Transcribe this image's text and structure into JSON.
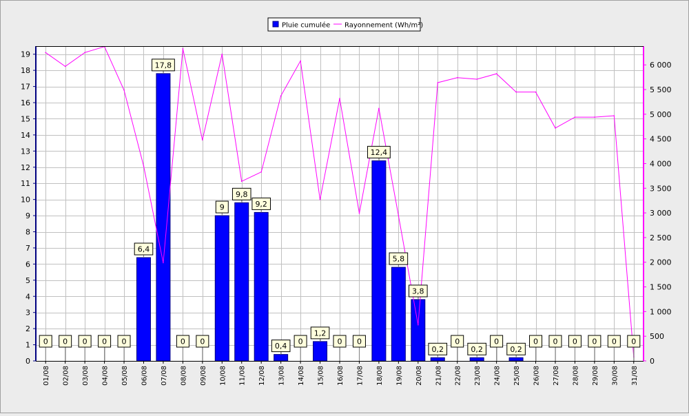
{
  "legend": {
    "rain_label": "Pluie cumulée",
    "radiation_label": "Rayonnement (Wh/m²)"
  },
  "colors": {
    "background": "#ececec",
    "plot_background": "#ffffff",
    "grid": "#c0c0c0",
    "bar": "#0000ff",
    "line": "#ff00ff",
    "label_fill": "#ffffdd"
  },
  "chart_data": {
    "type": "bar+line",
    "categories": [
      "01/08",
      "02/08",
      "03/08",
      "04/08",
      "05/08",
      "06/08",
      "07/08",
      "08/08",
      "09/08",
      "10/08",
      "11/08",
      "12/08",
      "13/08",
      "14/08",
      "15/08",
      "16/08",
      "17/08",
      "18/08",
      "19/08",
      "20/08",
      "21/08",
      "22/08",
      "23/08",
      "24/08",
      "25/08",
      "26/08",
      "27/08",
      "28/08",
      "29/08",
      "30/08",
      "31/08"
    ],
    "series": [
      {
        "name": "Pluie cumulée",
        "type": "bar",
        "axis": "left",
        "values": [
          0,
          0,
          0,
          0,
          0,
          6.4,
          17.8,
          0,
          0,
          9,
          9.8,
          9.2,
          0.4,
          0,
          1.2,
          0,
          0,
          12.4,
          5.8,
          3.8,
          0.2,
          0,
          0.2,
          0,
          0.2,
          0,
          0,
          0,
          0,
          0,
          0
        ],
        "labels": [
          "0",
          "0",
          "0",
          "0",
          "0",
          "6,4",
          "17,8",
          "0",
          "0",
          "9",
          "9,8",
          "9,2",
          "0,4",
          "0",
          "1,2",
          "0",
          "0",
          "12,4",
          "5,8",
          "3,8",
          "0,2",
          "0",
          "0,2",
          "0",
          "0,2",
          "0",
          "0",
          "0",
          "0",
          "0",
          "0"
        ]
      },
      {
        "name": "Rayonnement (Wh/m²)",
        "type": "line",
        "axis": "right",
        "values": [
          6250,
          5970,
          6250,
          6370,
          5490,
          3950,
          1990,
          6330,
          4480,
          6220,
          3640,
          3830,
          5370,
          6080,
          3270,
          5320,
          2990,
          5120,
          2940,
          730,
          5640,
          5740,
          5710,
          5820,
          5450,
          5450,
          4720,
          4940,
          4940,
          4970,
          80
        ]
      }
    ],
    "y_left": {
      "min": 0,
      "max": 19.5,
      "ticks": [
        "0",
        "1",
        "2",
        "3",
        "4",
        "5",
        "6",
        "7",
        "8",
        "9",
        "10",
        "11",
        "12",
        "13",
        "14",
        "15",
        "16",
        "17",
        "18",
        "19"
      ]
    },
    "y_right": {
      "min": 0,
      "max": 6380,
      "ticks": [
        "0",
        "500",
        "1 000",
        "1 500",
        "2 000",
        "2 500",
        "3 000",
        "3 500",
        "4 000",
        "4 500",
        "5 000",
        "5 500",
        "6 000"
      ]
    },
    "grid": true,
    "legend_position": "top-center"
  }
}
